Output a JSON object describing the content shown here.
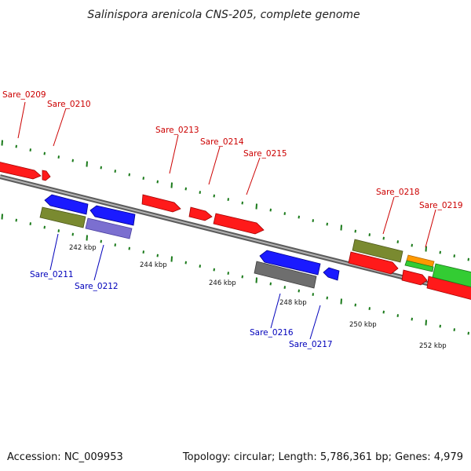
{
  "title": "Salinispora arenicola CNS-205, complete genome",
  "footer": {
    "accession": "Accession: NC_009953",
    "summary": "Topology: circular; Length: 5,786,361 bp; Genes: 4,979"
  },
  "scale_labels": [
    "242 kbp",
    "244 kbp",
    "246 kbp",
    "248 kbp",
    "250 kbp",
    "252 kbp"
  ],
  "gene_labels": [
    {
      "id": "Sare_0209",
      "text": "Sare_0209",
      "color": "#cc0000"
    },
    {
      "id": "Sare_0210",
      "text": "Sare_0210",
      "color": "#cc0000"
    },
    {
      "id": "Sare_0211",
      "text": "Sare_0211",
      "color": "#0000bb"
    },
    {
      "id": "Sare_0212",
      "text": "Sare_0212",
      "color": "#0000bb"
    },
    {
      "id": "Sare_0213",
      "text": "Sare_0213",
      "color": "#cc0000"
    },
    {
      "id": "Sare_0214",
      "text": "Sare_0214",
      "color": "#cc0000"
    },
    {
      "id": "Sare_0215",
      "text": "Sare_0215",
      "color": "#cc0000"
    },
    {
      "id": "Sare_0216",
      "text": "Sare_0216",
      "color": "#0000bb"
    },
    {
      "id": "Sare_0217",
      "text": "Sare_0217",
      "color": "#0000bb"
    },
    {
      "id": "Sare_0218",
      "text": "Sare_0218",
      "color": "#cc0000"
    },
    {
      "id": "Sare_0219",
      "text": "Sare_0219",
      "color": "#cc0000"
    }
  ],
  "colors": {
    "forward_gene": "#ff1a1a",
    "reverse_gene": "#1a1aff",
    "olive_feature": "#7a8a30",
    "purple_feature": "#7b6fd0",
    "gray_feature": "#6e6e6e",
    "green_feature": "#33cc33",
    "orange_feature": "#ff9900",
    "backbone": "#8c8c8c",
    "ticks": "#1a7a1a"
  }
}
